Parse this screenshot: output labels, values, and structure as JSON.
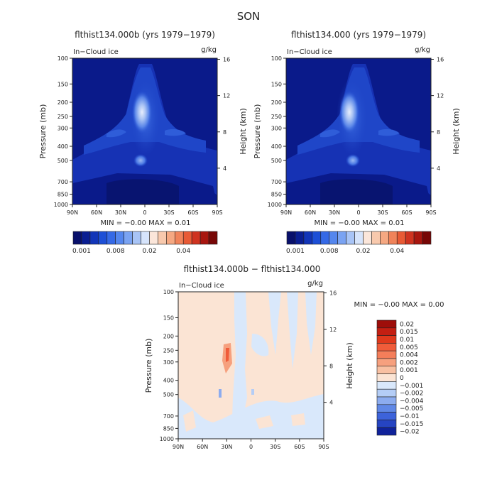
{
  "figure": {
    "title": "SON"
  },
  "chart_data": [
    {
      "type": "heatmap",
      "id": "panel-a",
      "title": "flthist134.000b (yrs 1979−1979)",
      "subtitle_left": "In−Cloud ice",
      "units": "g/kg",
      "ylabel": "Pressure (mb)",
      "ylabel_right": "Height (km)",
      "xticks": [
        "90N",
        "60N",
        "30N",
        "0",
        "30S",
        "60S",
        "90S"
      ],
      "yticks": [
        100,
        150,
        200,
        250,
        300,
        400,
        500,
        700,
        850,
        1000
      ],
      "yticks_right": [
        16,
        12,
        8,
        4
      ],
      "stats": "MIN =   −0.00   MAX =   0.01",
      "colorbar": {
        "colors": [
          "#08106b",
          "#0a1e92",
          "#1235b8",
          "#1d4fd6",
          "#3569e6",
          "#5486ee",
          "#7aa3f2",
          "#a8c4f6",
          "#d6e4fb",
          "#fbe6da",
          "#f8c9ad",
          "#f5a882",
          "#f0835a",
          "#e85a35",
          "#cf3320",
          "#a8160f",
          "#770706"
        ],
        "labels": [
          "0.001",
          "0.008",
          "0.02",
          "0.04"
        ]
      }
    },
    {
      "type": "heatmap",
      "id": "panel-b",
      "title": "flthist134.000 (yrs 1979−1979)",
      "subtitle_left": "In−Cloud ice",
      "units": "g/kg",
      "ylabel": "Pressure (mb)",
      "ylabel_right": "Height (km)",
      "xticks": [
        "90N",
        "60N",
        "30N",
        "0",
        "30S",
        "60S",
        "90S"
      ],
      "yticks": [
        100,
        150,
        200,
        250,
        300,
        400,
        500,
        700,
        850,
        1000
      ],
      "yticks_right": [
        16,
        12,
        8,
        4
      ],
      "stats": "MIN =   −0.00   MAX =   0.01",
      "colorbar": {
        "colors": [
          "#08106b",
          "#0a1e92",
          "#1235b8",
          "#1d4fd6",
          "#3569e6",
          "#5486ee",
          "#7aa3f2",
          "#a8c4f6",
          "#d6e4fb",
          "#fbe6da",
          "#f8c9ad",
          "#f5a882",
          "#f0835a",
          "#e85a35",
          "#cf3320",
          "#a8160f",
          "#770706"
        ],
        "labels": [
          "0.001",
          "0.008",
          "0.02",
          "0.04"
        ]
      }
    },
    {
      "type": "heatmap",
      "id": "panel-diff",
      "title": "flthist134.000b − flthist134.000",
      "subtitle_left": "In−Cloud ice",
      "units": "g/kg",
      "ylabel": "Pressure (mb)",
      "ylabel_right": "Height (km)",
      "xticks": [
        "90N",
        "60N",
        "30N",
        "0",
        "30S",
        "60S",
        "90S"
      ],
      "yticks": [
        100,
        150,
        200,
        250,
        300,
        400,
        500,
        700,
        850,
        1000
      ],
      "yticks_right": [
        16,
        12,
        8,
        4
      ],
      "stats": "MIN =   −0.00   MAX =    0.00",
      "colorbar": {
        "colors": [
          "#9e0e0a",
          "#c41f12",
          "#e0391c",
          "#f05c3a",
          "#f47e5a",
          "#f6a07e",
          "#f8c0a2",
          "#fbe4d4",
          "#d9e8fb",
          "#b4cdf6",
          "#8cacef",
          "#6088e6",
          "#3d63da",
          "#2644c2",
          "#10229a"
        ],
        "labels": [
          "0.02",
          "0.015",
          "0.01",
          "0.005",
          "0.004",
          "0.002",
          "0.001",
          "0",
          "−0.001",
          "−0.002",
          "−0.004",
          "−0.005",
          "−0.01",
          "−0.015",
          "−0.02"
        ]
      }
    }
  ]
}
